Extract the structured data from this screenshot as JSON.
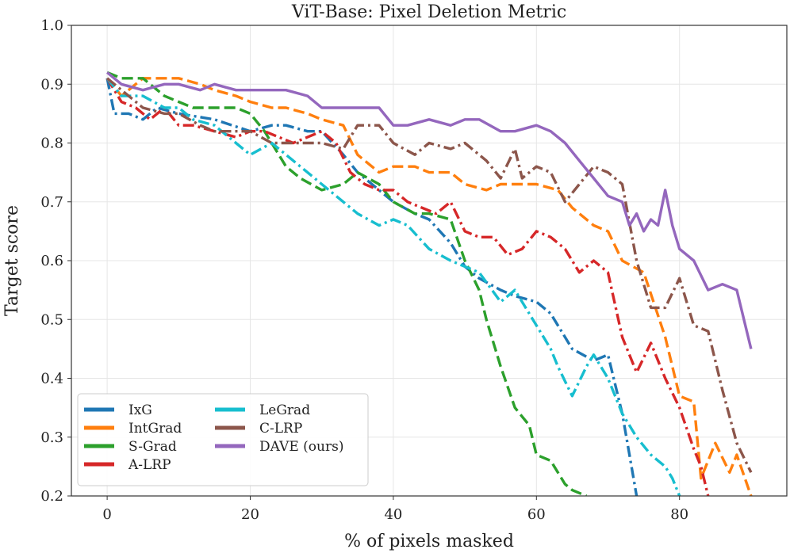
{
  "chart_data": {
    "type": "line",
    "title": "ViT-Base: Pixel Deletion Metric",
    "xlabel": "% of pixels masked",
    "ylabel": "Target score",
    "xlim": [
      -5,
      95
    ],
    "ylim": [
      0.2,
      1.0
    ],
    "xticks": [
      0,
      20,
      40,
      60,
      80
    ],
    "yticks": [
      0.2,
      0.3,
      0.4,
      0.5,
      0.6,
      0.7,
      0.8,
      0.9,
      1.0
    ],
    "xtick_labels": [
      "0",
      "20",
      "40",
      "60",
      "80"
    ],
    "ytick_labels": [
      "0.2",
      "0.3",
      "0.4",
      "0.5",
      "0.6",
      "0.7",
      "0.8",
      "0.9",
      "1.0"
    ],
    "grid": true,
    "legend": {
      "placement": "bottom-left",
      "columns": 2
    },
    "series": [
      {
        "name": "IxG",
        "color": "#1f77b4",
        "dash": "dashdot",
        "x": [
          0,
          1,
          3,
          5,
          7,
          10,
          15,
          20,
          23,
          25,
          28,
          30,
          33,
          35,
          38,
          40,
          43,
          45,
          48,
          50,
          52,
          55,
          57,
          60,
          62,
          65,
          68,
          70,
          72,
          73,
          74
        ],
        "y": [
          0.91,
          0.85,
          0.85,
          0.84,
          0.86,
          0.85,
          0.84,
          0.82,
          0.83,
          0.83,
          0.82,
          0.82,
          0.78,
          0.75,
          0.72,
          0.7,
          0.68,
          0.67,
          0.63,
          0.59,
          0.57,
          0.55,
          0.54,
          0.53,
          0.51,
          0.45,
          0.43,
          0.44,
          0.34,
          0.27,
          0.2
        ]
      },
      {
        "name": "IntGrad",
        "color": "#ff7f0e",
        "dash": "dash",
        "x": [
          0,
          2,
          5,
          8,
          10,
          13,
          15,
          18,
          20,
          23,
          25,
          28,
          30,
          33,
          35,
          38,
          40,
          43,
          45,
          48,
          50,
          53,
          55,
          58,
          60,
          63,
          65,
          68,
          70,
          72,
          75,
          78,
          80,
          82,
          83,
          85,
          87,
          88,
          90
        ],
        "y": [
          0.91,
          0.88,
          0.91,
          0.91,
          0.91,
          0.9,
          0.89,
          0.88,
          0.87,
          0.86,
          0.86,
          0.85,
          0.84,
          0.83,
          0.78,
          0.75,
          0.76,
          0.76,
          0.75,
          0.75,
          0.73,
          0.72,
          0.73,
          0.73,
          0.73,
          0.72,
          0.69,
          0.66,
          0.65,
          0.6,
          0.58,
          0.47,
          0.37,
          0.36,
          0.23,
          0.29,
          0.24,
          0.27,
          0.2
        ]
      },
      {
        "name": "S-Grad",
        "color": "#2ca02c",
        "dash": "dash",
        "x": [
          0,
          2,
          5,
          8,
          10,
          12,
          15,
          18,
          20,
          22,
          25,
          27,
          30,
          33,
          35,
          38,
          40,
          43,
          45,
          48,
          50,
          52,
          53,
          55,
          57,
          59,
          60,
          62,
          64,
          65,
          67
        ],
        "y": [
          0.92,
          0.91,
          0.91,
          0.88,
          0.87,
          0.86,
          0.86,
          0.86,
          0.85,
          0.82,
          0.76,
          0.74,
          0.72,
          0.73,
          0.75,
          0.73,
          0.7,
          0.68,
          0.68,
          0.67,
          0.6,
          0.55,
          0.5,
          0.42,
          0.35,
          0.32,
          0.27,
          0.26,
          0.22,
          0.21,
          0.2
        ]
      },
      {
        "name": "A-LRP",
        "color": "#d62728",
        "dash": "dashdot",
        "x": [
          0,
          2,
          4,
          6,
          8,
          10,
          12,
          15,
          18,
          20,
          22,
          24,
          26,
          28,
          30,
          32,
          34,
          36,
          38,
          40,
          42,
          44,
          46,
          48,
          50,
          52,
          54,
          56,
          58,
          60,
          62,
          64,
          66,
          68,
          70,
          72,
          74,
          76,
          78,
          80,
          82,
          83,
          84
        ],
        "y": [
          0.91,
          0.87,
          0.86,
          0.84,
          0.86,
          0.83,
          0.83,
          0.82,
          0.81,
          0.82,
          0.82,
          0.81,
          0.8,
          0.81,
          0.82,
          0.8,
          0.75,
          0.73,
          0.72,
          0.72,
          0.7,
          0.69,
          0.68,
          0.7,
          0.65,
          0.64,
          0.64,
          0.61,
          0.62,
          0.65,
          0.64,
          0.62,
          0.58,
          0.6,
          0.58,
          0.47,
          0.41,
          0.46,
          0.4,
          0.35,
          0.28,
          0.25,
          0.2
        ]
      },
      {
        "name": "LeGrad",
        "color": "#17becf",
        "dash": "dashdot",
        "x": [
          0,
          2,
          5,
          8,
          10,
          12,
          15,
          18,
          20,
          23,
          25,
          28,
          30,
          33,
          35,
          38,
          40,
          42,
          45,
          48,
          50,
          52,
          55,
          57,
          60,
          62,
          63,
          65,
          67,
          68,
          70,
          72,
          74,
          76,
          78,
          79,
          80
        ],
        "y": [
          0.91,
          0.88,
          0.88,
          0.86,
          0.86,
          0.84,
          0.83,
          0.8,
          0.78,
          0.8,
          0.78,
          0.75,
          0.73,
          0.7,
          0.68,
          0.66,
          0.67,
          0.66,
          0.62,
          0.6,
          0.59,
          0.58,
          0.53,
          0.55,
          0.49,
          0.45,
          0.42,
          0.37,
          0.42,
          0.44,
          0.4,
          0.34,
          0.3,
          0.27,
          0.25,
          0.23,
          0.2
        ]
      },
      {
        "name": "C-LRP",
        "color": "#8c564b",
        "dash": "dashdot",
        "x": [
          0,
          3,
          5,
          8,
          10,
          13,
          15,
          18,
          20,
          23,
          25,
          28,
          30,
          33,
          35,
          38,
          40,
          43,
          45,
          48,
          50,
          53,
          55,
          57,
          58,
          60,
          62,
          64,
          66,
          68,
          70,
          72,
          74,
          76,
          78,
          80,
          82,
          84,
          86,
          88,
          90
        ],
        "y": [
          0.91,
          0.88,
          0.86,
          0.85,
          0.85,
          0.83,
          0.82,
          0.82,
          0.82,
          0.8,
          0.8,
          0.8,
          0.8,
          0.79,
          0.83,
          0.83,
          0.8,
          0.78,
          0.8,
          0.79,
          0.8,
          0.77,
          0.74,
          0.79,
          0.74,
          0.76,
          0.75,
          0.7,
          0.73,
          0.76,
          0.75,
          0.73,
          0.6,
          0.52,
          0.52,
          0.57,
          0.49,
          0.48,
          0.38,
          0.29,
          0.24
        ]
      },
      {
        "name": "DAVE (ours)",
        "color": "#9467bd",
        "dash": "solid",
        "x": [
          0,
          2,
          5,
          8,
          10,
          13,
          15,
          18,
          20,
          23,
          25,
          28,
          30,
          33,
          35,
          38,
          40,
          42,
          45,
          48,
          50,
          52,
          55,
          57,
          60,
          62,
          64,
          66,
          68,
          70,
          72,
          73,
          74,
          75,
          76,
          77,
          78,
          79,
          80,
          82,
          84,
          86,
          88,
          89,
          90
        ],
        "y": [
          0.92,
          0.9,
          0.89,
          0.9,
          0.9,
          0.89,
          0.9,
          0.89,
          0.89,
          0.89,
          0.89,
          0.88,
          0.86,
          0.86,
          0.86,
          0.86,
          0.83,
          0.83,
          0.84,
          0.83,
          0.84,
          0.84,
          0.82,
          0.82,
          0.83,
          0.82,
          0.8,
          0.77,
          0.74,
          0.71,
          0.7,
          0.66,
          0.68,
          0.65,
          0.67,
          0.66,
          0.72,
          0.66,
          0.62,
          0.6,
          0.55,
          0.56,
          0.55,
          0.5,
          0.45
        ]
      }
    ]
  }
}
